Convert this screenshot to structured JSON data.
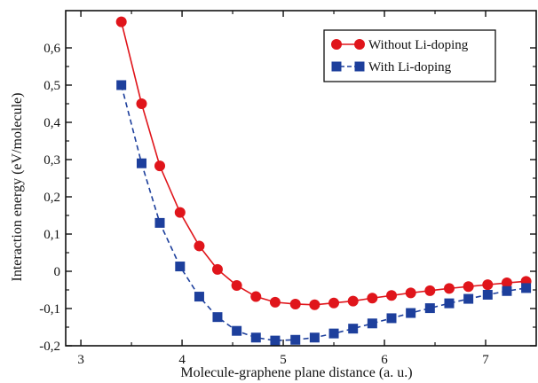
{
  "chart_data": {
    "type": "line",
    "title": "",
    "xlabel": "Molecule-graphene plane distance (a. u.)",
    "ylabel": "Interaction energy (eV/molecule)",
    "xlim": [
      2.85,
      7.5
    ],
    "ylim": [
      -0.2,
      0.7
    ],
    "x_ticks": [
      3,
      4,
      5,
      6,
      7
    ],
    "x_tick_labels": [
      "3",
      "4",
      "5",
      "6",
      "7"
    ],
    "y_ticks": [
      -0.2,
      -0.1,
      0,
      0.1,
      0.2,
      0.3,
      0.4,
      0.5,
      0.6
    ],
    "y_tick_labels": [
      "-0,2",
      "-0,1",
      "0",
      "0,1",
      "0,2",
      "0,3",
      "0,4",
      "0,5",
      "0,6"
    ],
    "grid": false,
    "legend_position": "top-right",
    "series": [
      {
        "name": "Without Li-doping",
        "color": "#e0151b",
        "marker": "circle",
        "line_style": "solid",
        "x": [
          3.4,
          3.6,
          3.78,
          3.98,
          4.17,
          4.35,
          4.54,
          4.73,
          4.92,
          5.12,
          5.31,
          5.5,
          5.69,
          5.88,
          6.07,
          6.26,
          6.45,
          6.64,
          6.83,
          7.02,
          7.21,
          7.4
        ],
        "y": [
          0.67,
          0.45,
          0.283,
          0.158,
          0.068,
          0.005,
          -0.038,
          -0.068,
          -0.083,
          -0.088,
          -0.09,
          -0.085,
          -0.08,
          -0.072,
          -0.065,
          -0.058,
          -0.052,
          -0.046,
          -0.041,
          -0.036,
          -0.031,
          -0.027
        ]
      },
      {
        "name": "With Li-doping",
        "color": "#1d3f9c",
        "marker": "square",
        "line_style": "dashed",
        "x": [
          3.4,
          3.6,
          3.78,
          3.98,
          4.17,
          4.35,
          4.54,
          4.73,
          4.92,
          5.12,
          5.31,
          5.5,
          5.69,
          5.88,
          6.07,
          6.26,
          6.45,
          6.64,
          6.83,
          7.02,
          7.21,
          7.4
        ],
        "y": [
          0.5,
          0.29,
          0.13,
          0.013,
          -0.068,
          -0.123,
          -0.16,
          -0.178,
          -0.186,
          -0.184,
          -0.178,
          -0.167,
          -0.154,
          -0.14,
          -0.126,
          -0.112,
          -0.099,
          -0.086,
          -0.074,
          -0.063,
          -0.053,
          -0.045
        ]
      }
    ]
  }
}
